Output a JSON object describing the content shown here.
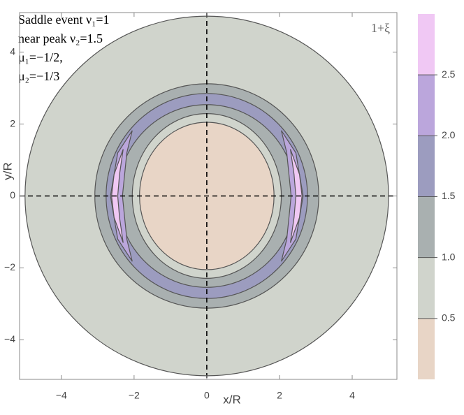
{
  "chart_data": {
    "type": "contour",
    "annotations": [
      "Saddle event ν₁=1",
      "near peak ν₂=1.5",
      "μ₁=−1/2,",
      "μ₂=−1/3"
    ],
    "field_label": "1+ξ",
    "xlabel": "x/R",
    "ylabel": "y/R",
    "xlim": [
      -5.15,
      5.23
    ],
    "ylim": [
      -5.1,
      5.1
    ],
    "xticks": [
      {
        "value": -4,
        "label": "−4"
      },
      {
        "value": -2,
        "label": "−2"
      },
      0,
      2,
      4
    ],
    "yticks": [
      {
        "value": -4,
        "label": "−4"
      },
      {
        "value": -2,
        "label": "−2"
      },
      0,
      2,
      4
    ],
    "regions": [
      {
        "shape": "ellipse",
        "rx": 5,
        "ry": 5,
        "color": "#d0d4cc"
      },
      {
        "shape": "ellipse",
        "rx": 3.08,
        "ry": 3.12,
        "color": "#a9b0b0"
      },
      {
        "shape": "ellipse",
        "rx": 2.77,
        "ry": 2.85,
        "color": "#9c9cbf"
      },
      {
        "shape": "ellipse",
        "rx": 2.45,
        "ry": 2.54,
        "color": "#a9b0b0"
      },
      {
        "shape": "ellipse",
        "rx": 2.05,
        "ry": 2.29,
        "color": "#d0d4cc"
      },
      {
        "shape": "ellipse",
        "rx": 1.85,
        "ry": 2.05,
        "color": "#e8d5c6"
      },
      {
        "shape": "polygon",
        "color": "#bba6dc",
        "x": [
          2.05,
          2.45,
          2.65,
          2.45,
          2.05,
          2.2,
          2.32,
          2.2
        ],
        "y": [
          1.82,
          1.2,
          0,
          -1.2,
          -1.82,
          -1.2,
          0,
          1.2
        ]
      },
      {
        "shape": "polygon",
        "color": "#bba6dc",
        "x": [
          -2.05,
          -2.45,
          -2.65,
          -2.45,
          -2.05,
          -2.2,
          -2.32,
          -2.2
        ],
        "y": [
          1.82,
          1.2,
          0,
          -1.2,
          -1.82,
          -1.2,
          0,
          1.2
        ]
      },
      {
        "shape": "polygon",
        "color": "#f0c8f4",
        "x": [
          2.3,
          2.55,
          2.62,
          2.55,
          2.3,
          2.4,
          2.45,
          2.4
        ],
        "y": [
          1.3,
          0.6,
          0,
          -0.6,
          -1.3,
          -0.6,
          0,
          0.6
        ]
      },
      {
        "shape": "polygon",
        "color": "#f0c8f4",
        "x": [
          -2.3,
          -2.55,
          -2.62,
          -2.55,
          -2.3,
          -2.4,
          -2.45,
          -2.4
        ],
        "y": [
          1.3,
          0.6,
          0,
          -0.6,
          -1.3,
          -0.6,
          0,
          0.6
        ]
      }
    ],
    "colorbar": {
      "lim": [
        0,
        3
      ],
      "ticks": [
        0.5,
        {
          "value": 1,
          "label": "1.0"
        },
        1.5,
        {
          "value": 2,
          "label": "2.0"
        },
        2.5
      ],
      "colors": [
        "#e8d5c6",
        "#d0d4cc",
        "#a9b0b0",
        "#9c9cbf",
        "#bba6dc",
        "#f0c8f4"
      ]
    }
  }
}
